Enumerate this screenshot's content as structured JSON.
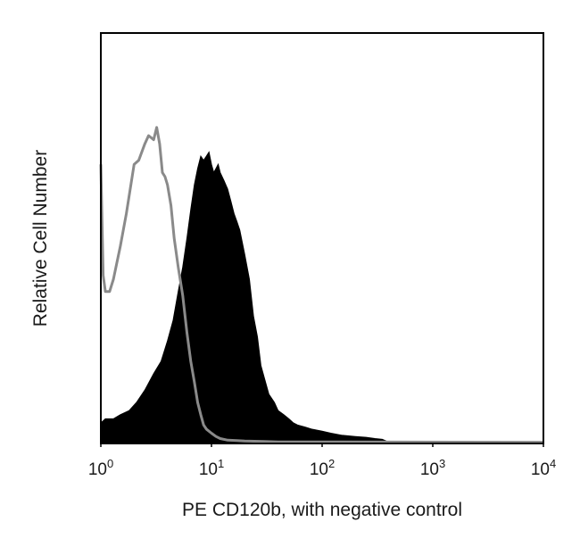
{
  "chart_data": {
    "type": "area",
    "title": "",
    "xlabel": "PE CD120b, with negative control",
    "ylabel": "Relative Cell Number",
    "x_scale": "log",
    "xlim": [
      1,
      10000
    ],
    "ylim": [
      0,
      100
    ],
    "x_ticks": [
      {
        "base": "10",
        "exp": "0",
        "value": 1
      },
      {
        "base": "10",
        "exp": "1",
        "value": 10
      },
      {
        "base": "10",
        "exp": "2",
        "value": 100
      },
      {
        "base": "10",
        "exp": "3",
        "value": 1000
      },
      {
        "base": "10",
        "exp": "4",
        "value": 10000
      }
    ],
    "y_ticks": [],
    "grid": false,
    "legend": "none",
    "series": [
      {
        "style": "filled",
        "color": "#000000",
        "x": [
          1.0,
          1.1,
          1.3,
          1.5,
          1.8,
          2.1,
          2.5,
          3.0,
          3.5,
          4.0,
          4.5,
          5.0,
          5.5,
          6.0,
          6.5,
          7.0,
          7.5,
          8.0,
          8.5,
          9.0,
          9.5,
          10.0,
          10.5,
          11.0,
          11.5,
          12.0,
          13.0,
          14.0,
          15.0,
          16.0,
          17.0,
          18.0,
          20.0,
          22.0,
          24.0,
          26.0,
          28.0,
          30.0,
          33.0,
          37.0,
          40.0,
          45.0,
          50.0,
          55.0,
          60.0,
          70.0,
          80.0,
          100.0,
          120.0,
          150.0,
          200.0,
          250.0,
          300.0,
          350.0,
          400.0,
          10000.0
        ],
        "values": [
          5,
          6,
          6,
          7,
          8,
          10,
          13,
          17,
          20,
          25,
          30,
          37,
          43,
          50,
          57,
          63,
          67,
          70,
          69,
          70,
          71,
          68,
          66,
          67,
          68,
          66,
          64,
          62,
          59,
          56,
          54,
          52,
          46,
          40,
          31,
          26,
          19,
          16,
          12,
          10,
          8,
          7,
          6,
          5,
          4.5,
          4,
          3.5,
          3,
          2.5,
          2,
          1.7,
          1.5,
          1.2,
          1.0,
          0.3,
          0
        ]
      },
      {
        "style": "line",
        "color": "#8a8a8a",
        "x": [
          1.0,
          1.05,
          1.1,
          1.2,
          1.3,
          1.5,
          1.7,
          2.0,
          2.2,
          2.5,
          2.7,
          3.0,
          3.2,
          3.4,
          3.6,
          3.8,
          4.0,
          4.3,
          4.6,
          5.0,
          5.5,
          6.0,
          6.5,
          7.0,
          7.5,
          8.0,
          8.5,
          9.0,
          10.0,
          11.0,
          12.0,
          14.0,
          17.0,
          20.0,
          30.0,
          40.0,
          10000.0
        ],
        "values": [
          68,
          41,
          37,
          37,
          40,
          48,
          56,
          68,
          69,
          73,
          75,
          74,
          77,
          73,
          66,
          65,
          63,
          58,
          50,
          43,
          36,
          27,
          20,
          15,
          10,
          7,
          4.5,
          3.5,
          2.5,
          1.7,
          1.2,
          0.8,
          0.7,
          0.6,
          0.5,
          0.4,
          0.3
        ]
      }
    ]
  }
}
